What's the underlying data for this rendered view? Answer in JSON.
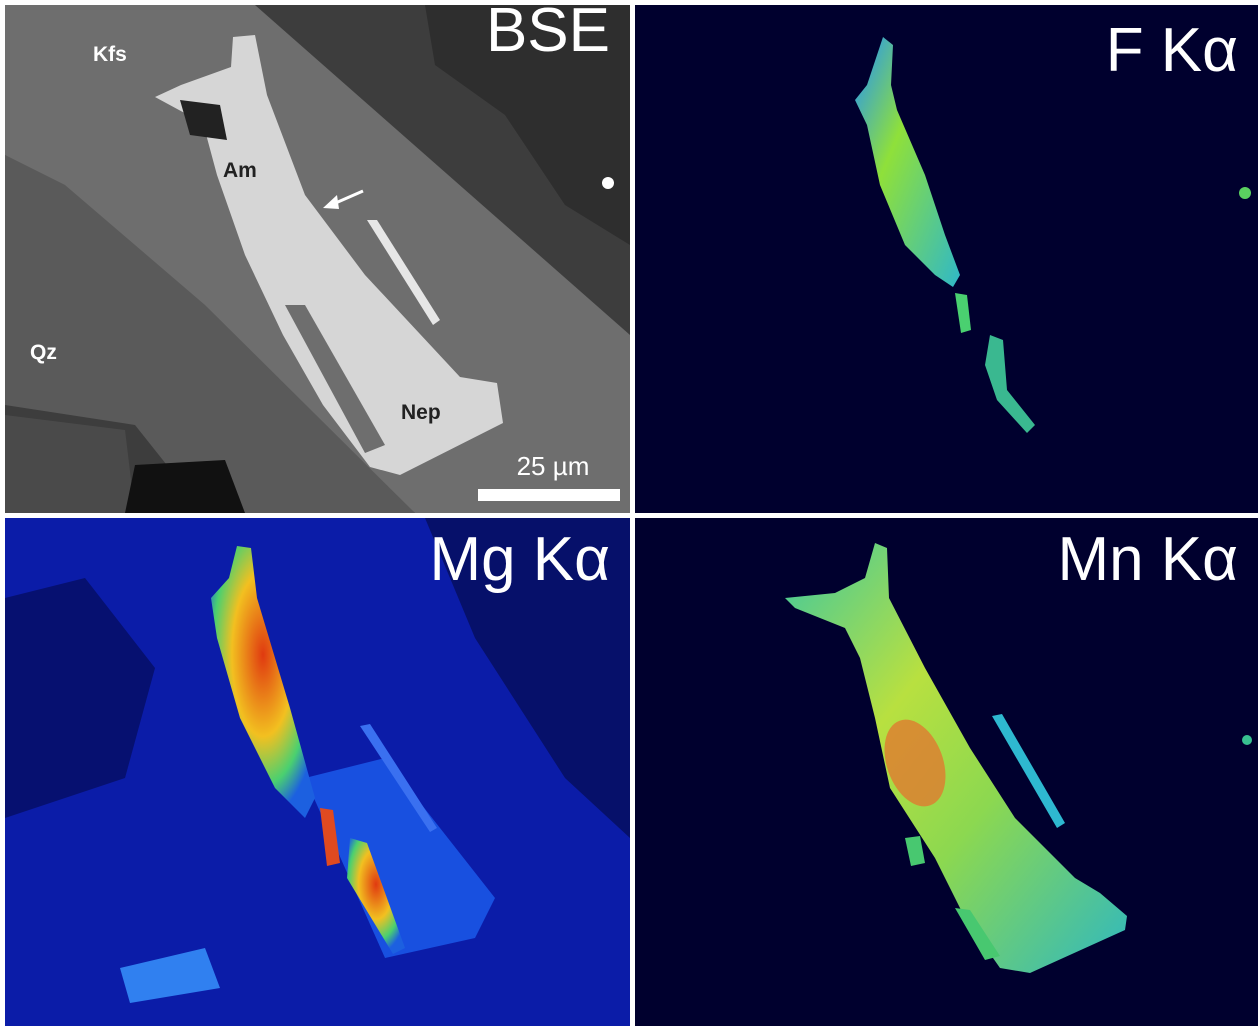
{
  "panels": [
    {
      "label": "BSE",
      "annotations": [
        "Kfs",
        "Am",
        "Qz",
        "Nep"
      ],
      "scale_bar": "25 µm"
    },
    {
      "label": "F Kα"
    },
    {
      "label": "Mg Kα"
    },
    {
      "label": "Mn Kα"
    }
  ]
}
